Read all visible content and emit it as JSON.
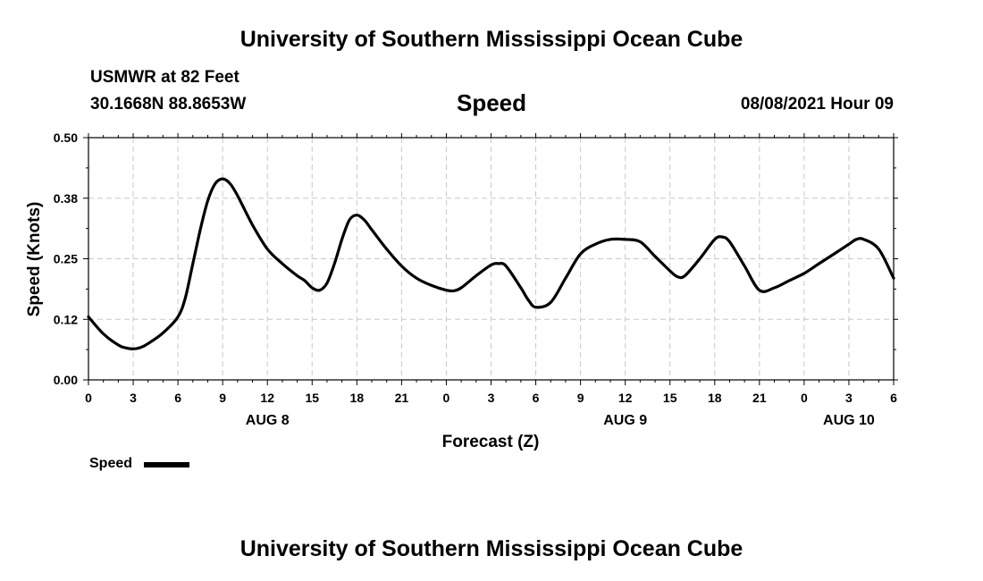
{
  "header": {
    "title_top": "University of Southern Mississippi Ocean Cube",
    "station": "USMWR at 82 Feet",
    "coords": "30.1668N  88.8653W",
    "date": "08/08/2021 Hour 09"
  },
  "footer": {
    "title_bottom": "University of Southern Mississippi Ocean Cube"
  },
  "chart_data": {
    "type": "line",
    "title": "Speed",
    "xlabel": "Forecast (Z)",
    "ylabel": "Speed (Knots)",
    "ylim": [
      0,
      0.5
    ],
    "xlim": [
      0,
      54
    ],
    "x_units": "hours from 00Z AUG 8",
    "grid": true,
    "yticks": [
      "0.00",
      "0.12",
      "0.25",
      "0.38",
      "0.50"
    ],
    "ytick_values": [
      0,
      0.125,
      0.25,
      0.375,
      0.5
    ],
    "xticks": [
      "0",
      "3",
      "6",
      "9",
      "12",
      "15",
      "18",
      "21",
      "0",
      "3",
      "6",
      "9",
      "12",
      "15",
      "18",
      "21",
      "0",
      "3",
      "6"
    ],
    "day_labels": [
      {
        "label": "AUG 8",
        "x": 12
      },
      {
        "label": "AUG 9",
        "x": 36
      },
      {
        "label": "AUG 10",
        "x": 51
      }
    ],
    "legend_position": "bottom-left",
    "series": [
      {
        "name": "Speed",
        "color": "#000000",
        "x": [
          0,
          1,
          2,
          2.5,
          3,
          3.5,
          4,
          5,
          6,
          6.5,
          7,
          7.5,
          8,
          8.5,
          9,
          9.5,
          10,
          11,
          12,
          13,
          14,
          14.5,
          15,
          15.5,
          16,
          16.5,
          17,
          17.5,
          18,
          18.5,
          19,
          20,
          21,
          22,
          23,
          24,
          24.5,
          25,
          26,
          27,
          27.5,
          28,
          29,
          29.5,
          30,
          31,
          32,
          33,
          34,
          35,
          36,
          37,
          38,
          39,
          39.5,
          40,
          41,
          42,
          42.5,
          43,
          44,
          45,
          46,
          47,
          48,
          49,
          50,
          51,
          51.5,
          52,
          53,
          54
        ],
        "y": [
          0.13,
          0.095,
          0.072,
          0.066,
          0.064,
          0.067,
          0.075,
          0.097,
          0.13,
          0.17,
          0.24,
          0.31,
          0.37,
          0.405,
          0.415,
          0.405,
          0.38,
          0.32,
          0.27,
          0.24,
          0.215,
          0.205,
          0.19,
          0.185,
          0.2,
          0.24,
          0.29,
          0.33,
          0.34,
          0.33,
          0.31,
          0.27,
          0.235,
          0.21,
          0.195,
          0.185,
          0.184,
          0.19,
          0.215,
          0.237,
          0.24,
          0.235,
          0.19,
          0.165,
          0.15,
          0.16,
          0.21,
          0.26,
          0.28,
          0.29,
          0.29,
          0.285,
          0.255,
          0.225,
          0.213,
          0.215,
          0.25,
          0.29,
          0.295,
          0.285,
          0.235,
          0.185,
          0.19,
          0.205,
          0.22,
          0.24,
          0.26,
          0.28,
          0.29,
          0.29,
          0.27,
          0.21
        ]
      }
    ]
  }
}
